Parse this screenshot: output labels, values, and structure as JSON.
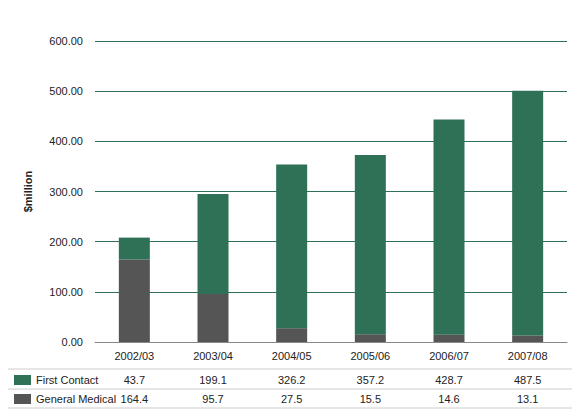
{
  "chart_data": {
    "type": "bar",
    "y_label": "$million",
    "categories": [
      "2002/03",
      "2003/04",
      "2004/05",
      "2005/06",
      "2006/07",
      "2007/08"
    ],
    "series": [
      {
        "name": "First Contact",
        "color": "#2e7157",
        "values": [
          43.7,
          199.1,
          326.2,
          357.2,
          428.7,
          487.5
        ]
      },
      {
        "name": "General Medical",
        "color": "#555555",
        "values": [
          164.4,
          95.7,
          27.5,
          15.5,
          14.6,
          13.1
        ]
      }
    ],
    "ylim": [
      0,
      600
    ],
    "yticks": [
      {
        "value": 0,
        "label": "0.00"
      },
      {
        "value": 100,
        "label": "100.00"
      },
      {
        "value": 200,
        "label": "200.00"
      },
      {
        "value": 300,
        "label": "300.00"
      },
      {
        "value": 400,
        "label": "400.00"
      },
      {
        "value": 500,
        "label": "500.00"
      },
      {
        "value": 600,
        "label": "600.00"
      }
    ],
    "stacked": true,
    "grid": true
  }
}
